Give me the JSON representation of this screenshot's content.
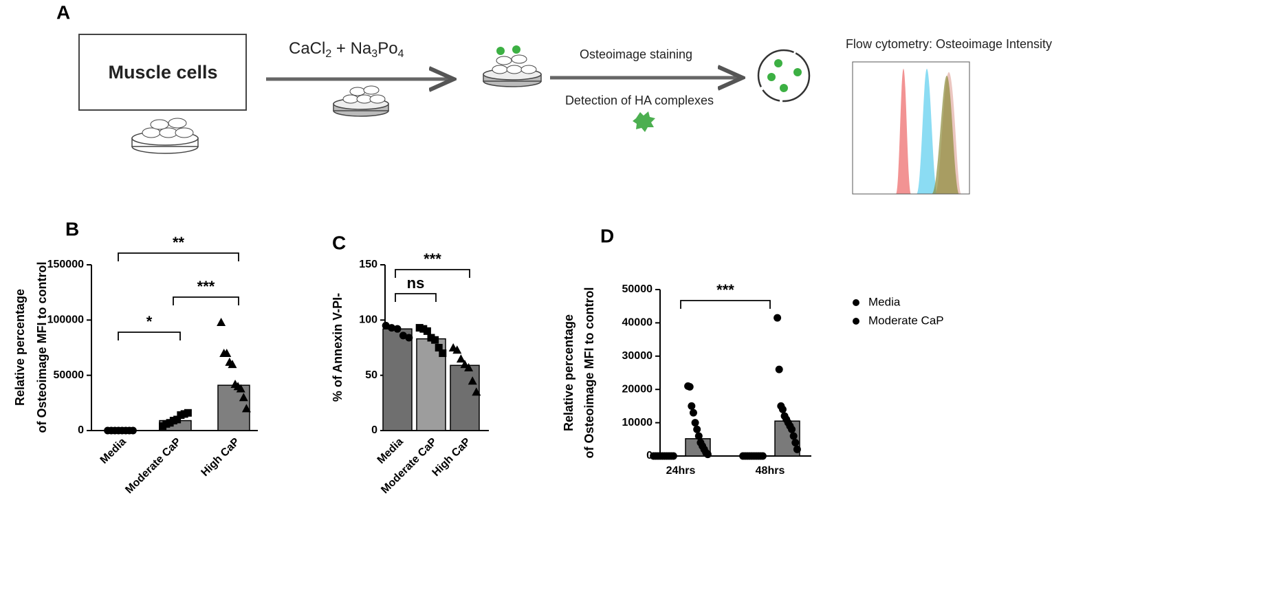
{
  "schematic": {
    "letter": "A",
    "box_label": "Muscle cells",
    "formula": [
      "CaCl",
      "2",
      " + Na",
      "3",
      "Po",
      "4"
    ],
    "step1": "Osteoimage staining",
    "step2": "Detection of HA complexes",
    "flow_title": "Flow cytometry: Osteoimage Intensity"
  },
  "chart_data": [
    {
      "type": "bar",
      "letter": "B",
      "ylabel": [
        "Relative percentage",
        "of Osteoimage MFI to control"
      ],
      "categories": [
        "Media",
        "Moderate CaP",
        "High CaP"
      ],
      "values": [
        0,
        9000,
        41000
      ],
      "colors": [
        "#7f7f7f",
        "#808080",
        "#7f7f7f"
      ],
      "markers": [
        "circle",
        "square",
        "triangle"
      ],
      "points": [
        [
          0,
          0,
          0,
          0,
          0,
          0,
          0,
          0
        ],
        [
          4000,
          6000,
          7000,
          9000,
          10000,
          14000,
          15000,
          16000
        ],
        [
          98000,
          70000,
          70000,
          62000,
          60000,
          42000,
          40000,
          38000,
          30000,
          20000
        ]
      ],
      "ylim": [
        0,
        150000
      ],
      "yticks": [
        0,
        50000,
        100000,
        150000
      ],
      "annotations": [
        {
          "text": "*",
          "from": 0,
          "to": 1
        },
        {
          "text": "**",
          "from": 0,
          "to": 2
        },
        {
          "text": "***",
          "from": 1,
          "to": 2
        }
      ]
    },
    {
      "type": "bar",
      "letter": "C",
      "ylabel": [
        "% of Annexin V-PI-"
      ],
      "categories": [
        "Media",
        "Moderate CaP",
        "High CaP"
      ],
      "values": [
        92,
        83,
        59
      ],
      "colors": [
        "#6f6f6f",
        "#9d9d9d",
        "#6f6f6f"
      ],
      "markers": [
        "circle",
        "square",
        "triangle"
      ],
      "points": [
        [
          95,
          93,
          92,
          86,
          84
        ],
        [
          93,
          92,
          90,
          84,
          82,
          75,
          70
        ],
        [
          75,
          73,
          65,
          60,
          57,
          45,
          35
        ]
      ],
      "ylim": [
        0,
        150
      ],
      "yticks": [
        0,
        50,
        100,
        150
      ],
      "annotations": [
        {
          "text": "ns",
          "from": 0,
          "to": 1
        },
        {
          "text": "***",
          "from": 0,
          "to": 2
        }
      ]
    },
    {
      "type": "grouped_bar",
      "letter": "D",
      "ylabel": [
        "Relative percentage",
        "of Osteoimage MFI to control"
      ],
      "categories": [
        "24hrs",
        "48hrs"
      ],
      "bar_color": "#7a7a7a",
      "series": [
        {
          "name": "Media",
          "color": "#000000",
          "values": [
            0,
            0
          ],
          "points": [
            [
              0,
              0,
              0,
              0,
              0,
              0,
              0,
              0,
              0,
              0
            ],
            [
              0,
              0,
              0,
              0,
              0,
              0,
              0,
              0,
              0,
              0
            ]
          ]
        },
        {
          "name": "Moderate CaP",
          "color": "#000000",
          "values": [
            5200,
            10500
          ],
          "points": [
            [
              21000,
              20800,
              15000,
              13000,
              10000,
              8000,
              6000,
              4000,
              3000,
              2000,
              1000,
              500
            ],
            [
              41500,
              26000,
              15000,
              14000,
              12000,
              11000,
              10000,
              9000,
              8000,
              6000,
              4000,
              2000
            ]
          ]
        }
      ],
      "ylim": [
        0,
        50000
      ],
      "yticks": [
        0,
        10000,
        20000,
        30000,
        40000,
        50000
      ],
      "legend": "right",
      "annotations": [
        {
          "text": "***",
          "from": 0,
          "to": 1
        }
      ]
    }
  ]
}
